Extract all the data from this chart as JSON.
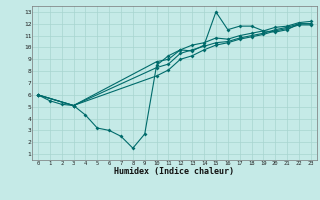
{
  "xlabel": "Humidex (Indice chaleur)",
  "bg_color": "#c5eae7",
  "grid_color": "#a8d5d0",
  "line_color": "#006b6b",
  "xlim": [
    -0.5,
    23.5
  ],
  "ylim": [
    0.5,
    13.5
  ],
  "xticks": [
    0,
    1,
    2,
    3,
    4,
    5,
    6,
    7,
    8,
    9,
    10,
    11,
    12,
    13,
    14,
    15,
    16,
    17,
    18,
    19,
    20,
    21,
    22,
    23
  ],
  "yticks": [
    1,
    2,
    3,
    4,
    5,
    6,
    7,
    8,
    9,
    10,
    11,
    12,
    13
  ],
  "line1_x": [
    0,
    1,
    2,
    3,
    4,
    5,
    6,
    7,
    8,
    9,
    10,
    11,
    12,
    13,
    14,
    15,
    16,
    17,
    18,
    19,
    20,
    21,
    22,
    23
  ],
  "line1_y": [
    6.0,
    5.5,
    5.2,
    5.1,
    4.3,
    3.2,
    3.0,
    2.5,
    1.5,
    2.7,
    8.5,
    9.3,
    9.8,
    9.7,
    10.2,
    13.0,
    11.5,
    11.8,
    11.8,
    11.4,
    11.3,
    11.5,
    12.0,
    12.0
  ],
  "line2_x": [
    0,
    3,
    10,
    11,
    12,
    13,
    14,
    15,
    16,
    17,
    18,
    19,
    20,
    21,
    22,
    23
  ],
  "line2_y": [
    6.0,
    5.1,
    8.3,
    8.6,
    9.5,
    9.8,
    10.1,
    10.4,
    10.5,
    10.8,
    11.0,
    11.2,
    11.5,
    11.7,
    12.0,
    12.0
  ],
  "line3_x": [
    0,
    3,
    10,
    11,
    12,
    13,
    14,
    15,
    16,
    17,
    18,
    19,
    20,
    21,
    22,
    23
  ],
  "line3_y": [
    6.0,
    5.1,
    7.6,
    8.1,
    9.0,
    9.3,
    9.8,
    10.2,
    10.4,
    10.7,
    10.9,
    11.1,
    11.4,
    11.6,
    11.9,
    11.9
  ],
  "line4_x": [
    0,
    3,
    10,
    11,
    12,
    13,
    14,
    15,
    16,
    17,
    18,
    19,
    20,
    21,
    22,
    23
  ],
  "line4_y": [
    6.0,
    5.1,
    8.8,
    9.0,
    9.8,
    10.2,
    10.4,
    10.8,
    10.7,
    11.0,
    11.2,
    11.4,
    11.7,
    11.8,
    12.1,
    12.2
  ]
}
